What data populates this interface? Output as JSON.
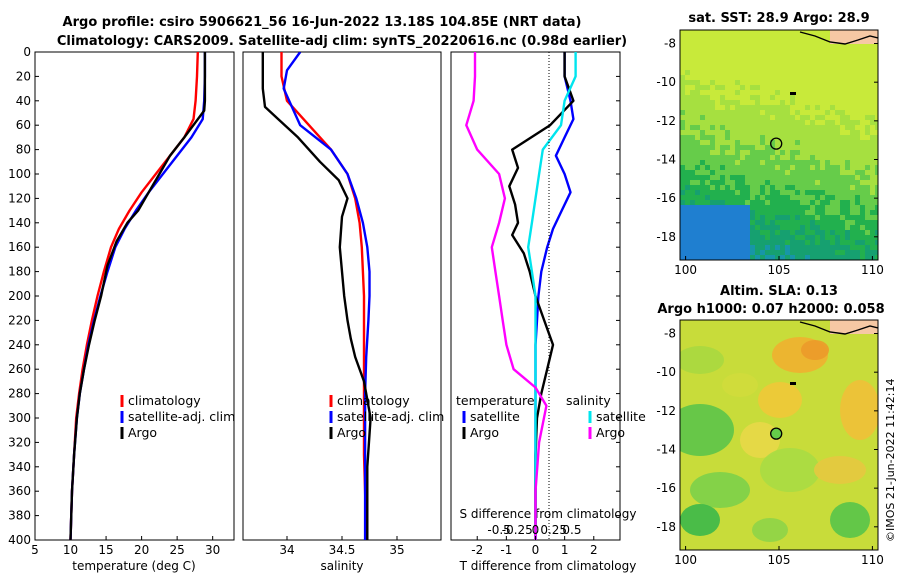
{
  "header": {
    "title_line1": "Argo profile: csiro 5906621_56 16-Jun-2022 13.18S 104.85E (NRT data)",
    "title_line2": "Climatology: CARS2009. Satellite-adj clim: synTS_20220616.nc (0.98d earlier)"
  },
  "side_text": "©IMOS 21-Jun-2022 11:42:14",
  "colors": {
    "climatology": "#ff0000",
    "satellite": "#0000ff",
    "argo": "#000000",
    "temp_diff": "#ff00ff",
    "sal_diff": "#00e5ee",
    "land": "#f6c8a4",
    "coast": "#000000"
  },
  "chart_data": [
    {
      "id": "temperature",
      "type": "line",
      "xlabel": "temperature (deg C)",
      "ylim": [
        0,
        400
      ],
      "xlim": [
        5,
        33
      ],
      "x_ticks": [
        5,
        10,
        15,
        20,
        25,
        30
      ],
      "y_ticks": [
        0,
        20,
        40,
        60,
        80,
        100,
        120,
        140,
        160,
        180,
        200,
        220,
        240,
        260,
        280,
        300,
        320,
        340,
        360,
        380,
        400
      ],
      "legend": [
        "climatology",
        "satellite-adj. clim",
        "Argo"
      ],
      "series": [
        {
          "name": "climatology",
          "color": "#ff0000",
          "x": [
            27.9,
            27.8,
            27.6,
            27.3,
            26.0,
            24.0,
            22.0,
            20.0,
            18.3,
            16.8,
            15.7,
            14.7,
            13.8,
            13.0,
            12.3,
            11.7,
            11.2,
            10.8,
            10.5,
            10.2,
            10.0
          ],
          "y": [
            0,
            20,
            40,
            55,
            70,
            85,
            100,
            115,
            130,
            145,
            160,
            180,
            200,
            220,
            240,
            260,
            280,
            300,
            330,
            360,
            400
          ]
        },
        {
          "name": "satellite-adj. clim",
          "color": "#0000ff",
          "x": [
            28.9,
            28.9,
            28.8,
            28.6,
            27.0,
            25.0,
            23.0,
            21.0,
            19.2,
            17.6,
            16.3,
            15.2,
            14.2,
            13.3,
            12.5,
            11.9,
            11.3,
            10.9,
            10.5,
            10.2,
            10.0
          ],
          "y": [
            0,
            20,
            40,
            55,
            70,
            85,
            100,
            115,
            130,
            145,
            160,
            180,
            200,
            220,
            240,
            260,
            280,
            300,
            330,
            360,
            400
          ]
        },
        {
          "name": "Argo",
          "color": "#000000",
          "x": [
            28.9,
            28.9,
            28.9,
            28.8,
            26.0,
            24.0,
            22.5,
            21.0,
            19.5,
            18.0,
            16.5,
            15.2,
            14.3,
            13.4,
            12.6,
            11.9,
            11.3,
            10.9,
            10.5,
            10.2,
            10.0
          ],
          "y": [
            0,
            20,
            40,
            48,
            70,
            85,
            100,
            115,
            130,
            140,
            155,
            175,
            200,
            220,
            240,
            260,
            280,
            300,
            330,
            360,
            400
          ]
        }
      ]
    },
    {
      "id": "salinity",
      "type": "line",
      "xlabel": "salinity",
      "ylim": [
        0,
        400
      ],
      "xlim": [
        33.6,
        35.4
      ],
      "x_ticks": [
        34,
        34.5,
        35
      ],
      "legend": [
        "climatology",
        "satellite-adj. clim",
        "Argo"
      ],
      "series": [
        {
          "name": "climatology",
          "color": "#ff0000",
          "x": [
            33.95,
            33.95,
            34.0,
            34.2,
            34.4,
            34.55,
            34.62,
            34.66,
            34.68,
            34.69,
            34.7,
            34.7,
            34.7,
            34.7,
            34.7,
            34.7,
            34.71,
            34.72
          ],
          "y": [
            0,
            20,
            40,
            60,
            80,
            100,
            120,
            140,
            160,
            180,
            200,
            220,
            250,
            280,
            300,
            330,
            360,
            400
          ]
        },
        {
          "name": "satellite-adj. clim",
          "color": "#0000ff",
          "x": [
            34.12,
            34.0,
            33.97,
            34.12,
            34.4,
            34.55,
            34.63,
            34.69,
            34.73,
            34.75,
            34.75,
            34.74,
            34.72,
            34.71,
            34.71,
            34.71,
            34.71,
            34.71
          ],
          "y": [
            0,
            15,
            30,
            60,
            80,
            100,
            120,
            140,
            160,
            180,
            200,
            220,
            250,
            280,
            300,
            330,
            360,
            400
          ]
        },
        {
          "name": "Argo",
          "color": "#000000",
          "x": [
            33.78,
            33.78,
            33.8,
            33.92,
            34.1,
            34.3,
            34.47,
            34.55,
            34.5,
            34.48,
            34.52,
            34.55,
            34.58,
            34.62,
            34.7,
            34.76,
            34.73,
            34.73
          ],
          "y": [
            0,
            30,
            45,
            55,
            70,
            90,
            105,
            120,
            135,
            160,
            200,
            220,
            235,
            250,
            270,
            300,
            340,
            400
          ]
        }
      ]
    },
    {
      "id": "differences",
      "type": "line",
      "xlabel": "T difference from climatology",
      "xlabel_top": "S difference from climatology",
      "ylim": [
        0,
        400
      ],
      "xlim": [
        -2.9,
        2.9
      ],
      "t_ticks": [
        -2,
        -1,
        0,
        1,
        2
      ],
      "t_tick_labels": [
        "-2",
        "-1",
        "0",
        "1",
        "2"
      ],
      "s_ticks": [
        -0.5,
        -0.25,
        0,
        0.25,
        0.5
      ],
      "s_tick_labels": [
        "-0.5",
        "-0.25",
        "0",
        "0.25",
        "0.5"
      ],
      "legend_left": {
        "title": "temperature",
        "items": [
          "satellite",
          "Argo"
        ]
      },
      "legend_right": {
        "title": "salinity",
        "items": [
          "satellite",
          "Argo"
        ]
      },
      "series": [
        {
          "name": "satellite T",
          "color": "#0000ff",
          "x": [
            1.0,
            1.0,
            1.2,
            1.3,
            1.0,
            0.7,
            1.0,
            1.2,
            0.9,
            0.6,
            0.4,
            0.2,
            0.1,
            0.05,
            0.0,
            0.0,
            0.0,
            0.0,
            0.0,
            0.0,
            0.0
          ],
          "y": [
            0,
            20,
            40,
            55,
            70,
            85,
            100,
            115,
            130,
            145,
            160,
            180,
            200,
            220,
            240,
            260,
            280,
            300,
            330,
            360,
            400
          ]
        },
        {
          "name": "Argo T",
          "color": "#000000",
          "x": [
            1.0,
            1.0,
            1.3,
            0.5,
            -0.8,
            -0.6,
            -0.9,
            -0.7,
            -0.6,
            -0.8,
            -0.4,
            -0.2,
            0.0,
            0.3,
            0.6,
            0.4,
            0.2,
            0.05,
            0.0,
            0.0,
            0.0
          ],
          "y": [
            0,
            20,
            40,
            60,
            80,
            95,
            110,
            125,
            140,
            150,
            165,
            180,
            200,
            220,
            240,
            260,
            280,
            300,
            330,
            360,
            400
          ]
        },
        {
          "name": "satellite S",
          "color": "#00e5ee",
          "x": [
            0.55,
            0.55,
            0.4,
            0.35,
            0.1,
            0.05,
            0.0,
            -0.05,
            -0.1,
            -0.05,
            0.0,
            0.0,
            0.0,
            0.0,
            0.0,
            0.0,
            0.0,
            0.0,
            0.0
          ],
          "y": [
            0,
            20,
            40,
            60,
            80,
            100,
            120,
            140,
            160,
            180,
            200,
            230,
            260,
            280,
            300,
            330,
            360,
            380,
            400
          ]
        },
        {
          "name": "Argo S",
          "color": "#ff00ff",
          "x": [
            -0.83,
            -0.83,
            -0.85,
            -0.95,
            -0.8,
            -0.5,
            -0.42,
            -0.5,
            -0.6,
            -0.55,
            -0.5,
            -0.45,
            -0.4,
            -0.3,
            0.0,
            0.15,
            0.05,
            0.0,
            0.0
          ],
          "y": [
            0,
            20,
            40,
            60,
            80,
            100,
            120,
            140,
            160,
            180,
            200,
            220,
            240,
            260,
            275,
            290,
            320,
            360,
            400
          ]
        }
      ]
    },
    {
      "id": "sst_map",
      "type": "heatmap",
      "title": "sat. SST: 28.9 Argo: 28.9",
      "xlim": [
        99.7,
        110.3
      ],
      "ylim": [
        -19.2,
        -7.3
      ],
      "x_ticks": [
        100,
        105,
        110
      ],
      "y_ticks": [
        -8,
        -10,
        -12,
        -14,
        -16,
        -18
      ],
      "argo_position": {
        "lon": 104.85,
        "lat": -13.18
      }
    },
    {
      "id": "sla_map",
      "type": "heatmap",
      "title_line1": "Altim. SLA: 0.13",
      "title_line2": "Argo h1000: 0.07 h2000: 0.058",
      "xlim": [
        99.7,
        110.3
      ],
      "ylim": [
        -19.2,
        -7.3
      ],
      "x_ticks": [
        100,
        105,
        110
      ],
      "y_ticks": [
        -8,
        -10,
        -12,
        -14,
        -16,
        -18
      ],
      "argo_position": {
        "lon": 104.85,
        "lat": -13.18
      }
    }
  ]
}
